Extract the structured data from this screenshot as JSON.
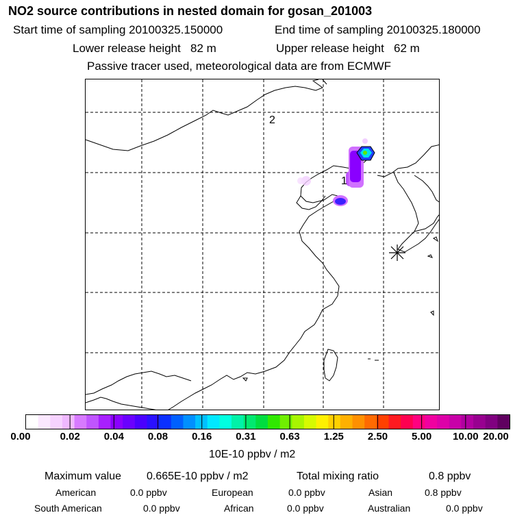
{
  "header": {
    "title": "NO2 source contributions in nested domain for gosan_201003",
    "start_label": "Start time of sampling 20100325.150000",
    "end_label": "End time of sampling 20100325.180000",
    "lower_label": "Lower release height   82 m",
    "upper_label": "Upper release height   62 m",
    "note": "Passive tracer used, meteorological data are from ECMWF"
  },
  "map": {
    "markers": [
      {
        "label": "1"
      },
      {
        "label": "2"
      }
    ],
    "receptor_icon": "asterisk-icon"
  },
  "colorbar": {
    "ticks": [
      "0.00",
      "0.02",
      "0.04",
      "0.08",
      "0.16",
      "0.31",
      "0.63",
      "1.25",
      "2.50",
      "5.00",
      "10.00",
      "20.00"
    ],
    "unit": "10E-10 ppbv / m2",
    "colors": [
      "#ffffff",
      "#fbe8ff",
      "#f6d2ff",
      "#efb8ff",
      "#d77aff",
      "#c055ff",
      "#a820ff",
      "#8a00ff",
      "#6a00ff",
      "#4a00ff",
      "#2a10ff",
      "#0a30ff",
      "#0060ff",
      "#0090ff",
      "#00c0ff",
      "#00e8ff",
      "#00ffe0",
      "#00f2a8",
      "#00e870",
      "#00dd40",
      "#30e800",
      "#70ef00",
      "#a8f500",
      "#d6fa00",
      "#fff000",
      "#ffd000",
      "#ffb000",
      "#ff9000",
      "#ff6a00",
      "#ff4000",
      "#ff1a20",
      "#ff0050",
      "#ff0080",
      "#f000a0",
      "#dd00a8",
      "#c800a8",
      "#b000a0",
      "#980090",
      "#800080",
      "#600060"
    ]
  },
  "summary": {
    "max_label": "Maximum value",
    "max_value": "0.665E-10 ppbv / m2",
    "total_label": "Total mixing ratio",
    "total_value": "0.8 ppbv",
    "rows": [
      [
        {
          "name": "American",
          "value": "0.0 ppbv"
        },
        {
          "name": "European",
          "value": "0.0 ppbv"
        },
        {
          "name": "Asian",
          "value": "0.8 ppbv"
        }
      ],
      [
        {
          "name": "South American",
          "value": "0.0 ppbv"
        },
        {
          "name": "African",
          "value": "0.0 ppbv"
        },
        {
          "name": "Australian",
          "value": "0.0 ppbv"
        }
      ]
    ]
  }
}
